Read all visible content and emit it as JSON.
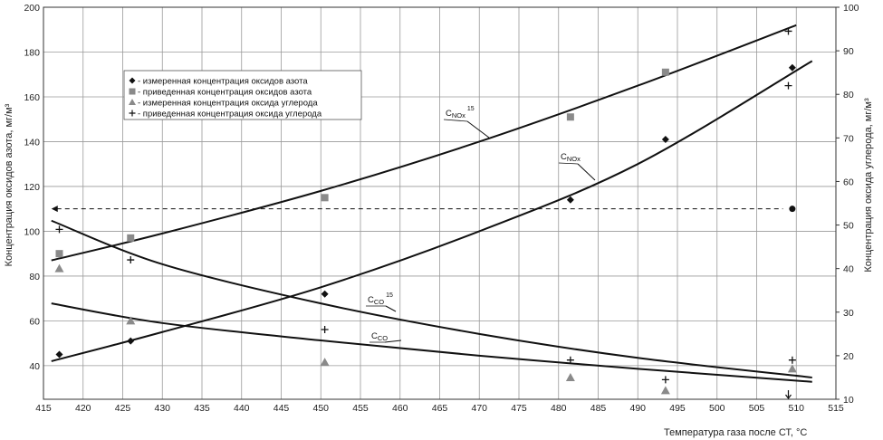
{
  "chart_data": {
    "type": "scatter",
    "x_axis": {
      "label": "Температура газа после СТ, °С",
      "range": [
        415,
        515
      ],
      "ticks": [
        415,
        420,
        425,
        430,
        435,
        440,
        445,
        450,
        455,
        460,
        465,
        470,
        475,
        480,
        485,
        490,
        495,
        500,
        505,
        510,
        515
      ]
    },
    "y_left": {
      "label": "Концентрация оксидов азота, мг/м³",
      "range": [
        25,
        200
      ],
      "ticks": [
        40,
        60,
        80,
        100,
        120,
        140,
        160,
        180,
        200
      ]
    },
    "y_right": {
      "label": "Концентрация оксида углерода, мг/м³",
      "range": [
        10,
        100
      ],
      "ticks": [
        10,
        20,
        30,
        40,
        50,
        60,
        70,
        80,
        90,
        100
      ]
    },
    "grid": true,
    "legend_position": "top-left",
    "legend": [
      {
        "symbol": "diamond",
        "label": "- измеренная концентрация оксидов азота"
      },
      {
        "symbol": "square",
        "label": "- приведенная концентрация оксидов азота"
      },
      {
        "symbol": "triangle",
        "label": "- измеренная концентрация оксида углерода"
      },
      {
        "symbol": "plus",
        "label": "- приведенная концентрация оксида углерода"
      }
    ],
    "series": [
      {
        "name": "измеренная концентрация оксидов азота",
        "axis": "left",
        "marker": "diamond",
        "x": [
          417,
          426,
          450.5,
          481.5,
          493.5,
          509.5
        ],
        "y": [
          45,
          51,
          72,
          114,
          141,
          173
        ]
      },
      {
        "name": "приведенная концентрация оксидов азота",
        "axis": "left",
        "marker": "square",
        "x": [
          417,
          426,
          450.5,
          481.5,
          493.5
        ],
        "y": [
          90,
          97,
          115,
          151,
          171
        ]
      },
      {
        "name": "измеренная концентрация оксида углерода",
        "axis": "right",
        "marker": "triangle",
        "x": [
          417,
          426,
          450.5,
          481.5,
          493.5,
          509.5
        ],
        "y": [
          40,
          28,
          18.5,
          15,
          12,
          17
        ]
      },
      {
        "name": "приведенная концентрация оксида углерода",
        "axis": "right",
        "marker": "plus",
        "x": [
          417,
          426,
          450.5,
          481.5,
          493.5,
          509.5,
          509
        ],
        "y": [
          49,
          42,
          26,
          19,
          14.5,
          19,
          94.5
        ]
      }
    ],
    "extra_points": [
      {
        "axis": "left",
        "marker": "plus",
        "x": 509,
        "y": 165
      },
      {
        "axis": "left",
        "marker": "circle",
        "x": 509.5,
        "y": 110
      },
      {
        "axis": "left",
        "marker": "arrow",
        "x": 509,
        "y": 25
      }
    ],
    "trend_lines": [
      {
        "label": "C_NOx^15",
        "axis": "left",
        "x": [
          416,
          430,
          450,
          470,
          490,
          510
        ],
        "y": [
          87,
          99,
          118,
          140,
          165,
          192
        ]
      },
      {
        "label": "C_NOx",
        "axis": "left",
        "x": [
          416,
          430,
          450,
          470,
          490,
          512
        ],
        "y": [
          42,
          55,
          75,
          100,
          130,
          176
        ]
      },
      {
        "label": "C_CO^15",
        "axis": "right",
        "x": [
          416,
          430,
          450,
          470,
          490,
          512
        ],
        "y": [
          51,
          41,
          32,
          25,
          19.5,
          15
        ]
      },
      {
        "label": "C_CO",
        "axis": "right",
        "x": [
          416,
          430,
          450,
          470,
          490,
          512
        ],
        "y": [
          32,
          27.5,
          23.5,
          20,
          17,
          14
        ]
      }
    ],
    "reference_line": {
      "axis": "left",
      "y": 110,
      "x_from": 416,
      "x_to": 509,
      "style": "dashed-arrow"
    },
    "annotations": [
      {
        "id": "cnox15",
        "main": "C",
        "sub": "NOx",
        "sup": "15"
      },
      {
        "id": "cnox",
        "main": "C",
        "sub": "NOx",
        "sup": ""
      },
      {
        "id": "cco15",
        "main": "C",
        "sub": "CO",
        "sup": "15"
      },
      {
        "id": "cco",
        "main": "C",
        "sub": "CO",
        "sup": ""
      }
    ]
  }
}
